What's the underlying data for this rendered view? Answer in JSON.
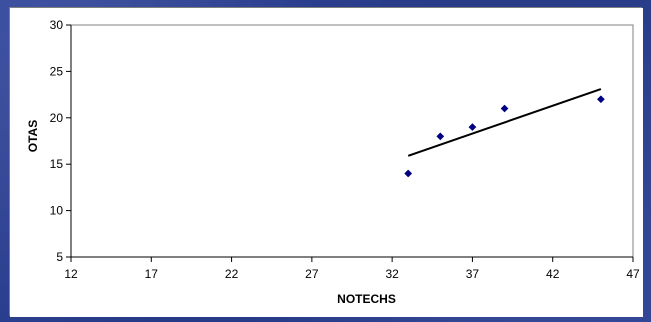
{
  "chart_data": {
    "type": "scatter",
    "title": "",
    "xlabel": "NOTECHS",
    "ylabel": "OTAS",
    "xlim": [
      12,
      47
    ],
    "ylim": [
      5,
      30
    ],
    "x_ticks": [
      12,
      17,
      22,
      27,
      32,
      37,
      42,
      47
    ],
    "y_ticks": [
      5,
      10,
      15,
      20,
      25,
      30
    ],
    "grid": false,
    "legend": "none",
    "points": [
      {
        "x": 33,
        "y": 14
      },
      {
        "x": 35,
        "y": 18
      },
      {
        "x": 37,
        "y": 19
      },
      {
        "x": 39,
        "y": 21
      },
      {
        "x": 45,
        "y": 22
      }
    ],
    "trendline": {
      "type": "linear",
      "start": {
        "x": 33,
        "y": 15.9
      },
      "end": {
        "x": 45,
        "y": 23.1
      }
    },
    "colors": {
      "marker": "#000080",
      "trendline": "#000000",
      "axis": "#000000",
      "plot_border": "#808080",
      "background": "#ffffff"
    }
  }
}
